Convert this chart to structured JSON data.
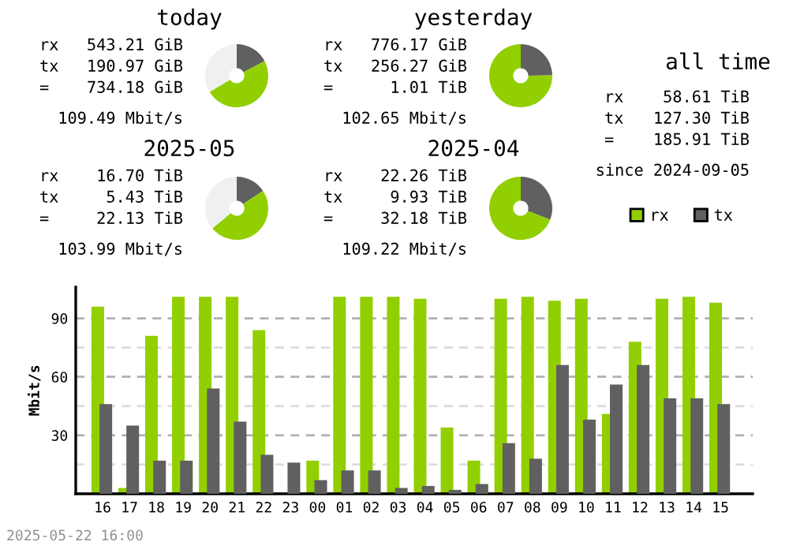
{
  "chart_data": [
    {
      "type": "donut",
      "title": "today",
      "annotations": [
        "rx 543.21 GiB",
        "tx 190.97 GiB",
        "= 734.18 GiB",
        "109.49 Mbit/s"
      ],
      "categories": [
        null,
        null,
        null
      ],
      "values": [
        17.3,
        49.1,
        33.6
      ],
      "colors": [
        "#606060",
        "#92cf00",
        "#f0f0f0"
      ]
    },
    {
      "type": "donut",
      "title": "yesterday",
      "annotations": [
        "rx 776.17 GiB",
        "tx 256.27 GiB",
        "= 1.01 TiB",
        "102.65 Mbit/s"
      ],
      "categories": [
        null,
        null
      ],
      "values": [
        24.8,
        75.2
      ],
      "colors": [
        "#606060",
        "#92cf00"
      ]
    },
    {
      "type": "other",
      "title": "all time",
      "annotations": [
        "rx 58.61 TiB",
        "tx 127.30 TiB",
        "= 185.91 TiB",
        "since 2024-09-05"
      ]
    },
    {
      "type": "donut",
      "title": "2025-05",
      "annotations": [
        "rx 16.70 TiB",
        "tx 5.43 TiB",
        "= 22.13 TiB",
        "103.99 Mbit/s"
      ],
      "categories": [
        null,
        null,
        null
      ],
      "values": [
        15.7,
        48.3,
        36.0
      ],
      "colors": [
        "#606060",
        "#92cf00",
        "#f0f0f0"
      ]
    },
    {
      "type": "donut",
      "title": "2025-04",
      "annotations": [
        "rx 22.26 TiB",
        "tx 9.93 TiB",
        "= 32.18 TiB",
        "109.22 Mbit/s"
      ],
      "categories": [
        null,
        null
      ],
      "values": [
        30.9,
        69.1
      ],
      "colors": [
        "#606060",
        "#92cf00"
      ]
    },
    {
      "type": "bar",
      "ylabel": "Mbit/s",
      "annotations": [
        "2025-05-22 16:00"
      ],
      "legend": "top right",
      "grid": "y",
      "categories": [
        "16",
        "17",
        "18",
        "19",
        "20",
        "21",
        "22",
        "23",
        "00",
        "01",
        "02",
        "03",
        "04",
        "05",
        "06",
        "07",
        "08",
        "09",
        "10",
        "11",
        "12",
        "13",
        "14",
        "15"
      ],
      "ylim": [
        0,
        106
      ],
      "yticks": [
        {
          "value": 15,
          "label": null
        },
        30,
        {
          "value": 45,
          "label": null
        },
        60,
        {
          "value": 75,
          "label": null
        },
        90
      ],
      "series": [
        {
          "name": "rx",
          "color": "#92cf00",
          "values": [
            96,
            3,
            81,
            101,
            101,
            101,
            84,
            0,
            17,
            101,
            101,
            101,
            100,
            34,
            17,
            100,
            101,
            99,
            100,
            41,
            78,
            100,
            101,
            98
          ]
        },
        {
          "name": "tx",
          "color": "#606060",
          "values": [
            46,
            35,
            17,
            17,
            54,
            37,
            20,
            16,
            7,
            12,
            12,
            3,
            4,
            2,
            5,
            26,
            18,
            66,
            38,
            56,
            66,
            49,
            49,
            46
          ]
        }
      ]
    }
  ]
}
